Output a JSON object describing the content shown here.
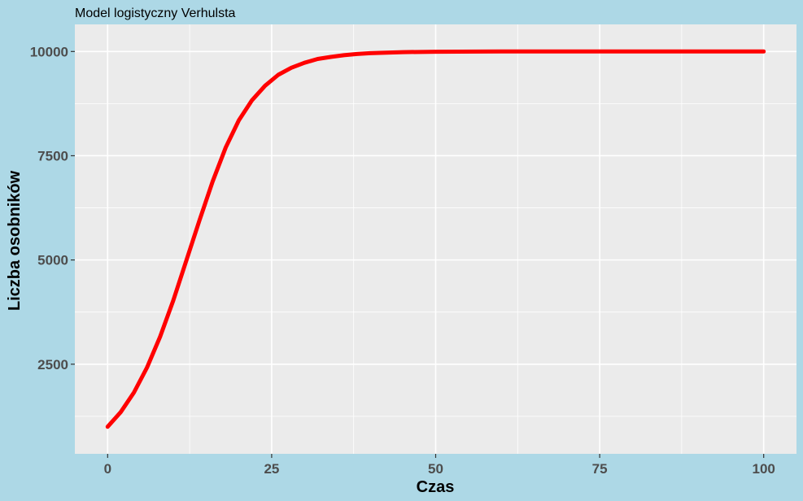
{
  "chart_data": {
    "type": "line",
    "title": "Model logistyczny Verhulsta",
    "xlabel": "Czas",
    "ylabel": "Liczba osobników",
    "xlim": [
      -5,
      105
    ],
    "ylim": [
      350,
      10650
    ],
    "x_ticks": [
      0,
      25,
      50,
      75,
      100
    ],
    "x_tick_labels": [
      "0",
      "25",
      "50",
      "75",
      "100"
    ],
    "y_ticks": [
      2500,
      5000,
      7500,
      10000
    ],
    "y_tick_labels": [
      "2500",
      "5000",
      "7500",
      "10000"
    ],
    "grid": true,
    "colors": {
      "page_background": "#add8e6",
      "panel_background": "#ebebeb",
      "grid": "#ffffff",
      "line": "#ff0000"
    },
    "series": [
      {
        "x": [
          0,
          2,
          4,
          6,
          8,
          10,
          12,
          14,
          16,
          18,
          20,
          22,
          24,
          26,
          28,
          30,
          32,
          34,
          36,
          38,
          40,
          45,
          50,
          60,
          70,
          80,
          90,
          100
        ],
        "y": [
          1000,
          1350,
          1820,
          2420,
          3160,
          4030,
          4990,
          5950,
          6880,
          7700,
          8350,
          8830,
          9180,
          9440,
          9610,
          9730,
          9820,
          9870,
          9910,
          9940,
          9960,
          9985,
          9995,
          10000,
          10000,
          10000,
          10000,
          10000
        ]
      }
    ]
  }
}
